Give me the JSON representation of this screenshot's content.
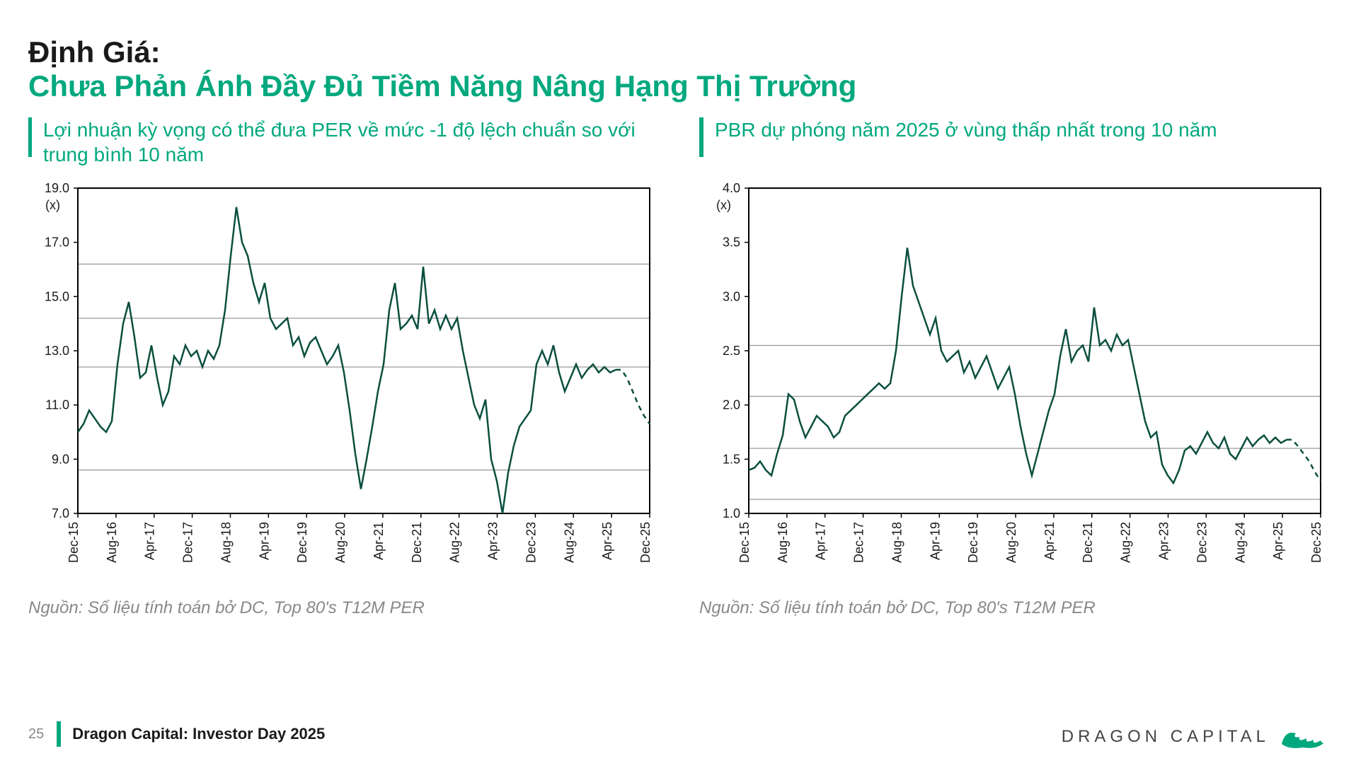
{
  "colors": {
    "accent": "#00a87e",
    "text_dark": "#1a1a1a",
    "text_muted": "#888888",
    "line": "#0b4f3f",
    "axis": "#000000",
    "grid": "#808080",
    "bg": "#ffffff"
  },
  "fonts": {
    "title_size": 42,
    "subtitle_size": 28,
    "source_size": 24,
    "footer_size": 22,
    "axis_tick_size": 18
  },
  "title": {
    "line1": "Định Giá:",
    "line2": "Chưa Phản Ánh Đầy Đủ Tiềm Năng  Nâng Hạng Thị Trường"
  },
  "chart_left": {
    "subtitle": "Lợi nhuận kỳ vọng có thể đưa PER về mức -1 độ lệch chuẩn so với trung bình 10 năm",
    "type": "line",
    "unit_label": "(x)",
    "ylim": [
      7.0,
      19.0
    ],
    "yticks": [
      7.0,
      9.0,
      11.0,
      13.0,
      15.0,
      17.0,
      19.0
    ],
    "hlines": [
      8.6,
      12.4,
      14.2,
      16.2
    ],
    "x_labels": [
      "Dec-15",
      "Aug-16",
      "Apr-17",
      "Dec-17",
      "Aug-18",
      "Apr-19",
      "Dec-19",
      "Aug-20",
      "Apr-21",
      "Dec-21",
      "Aug-22",
      "Apr-23",
      "Dec-23",
      "Aug-24",
      "Apr-25",
      "Dec-25"
    ],
    "line_color": "#0b4f3f",
    "line_width": 2.5,
    "series": [
      10.0,
      10.3,
      10.8,
      10.5,
      10.2,
      10.0,
      10.4,
      12.5,
      14.0,
      14.8,
      13.5,
      12.0,
      12.2,
      13.2,
      12.0,
      11.0,
      11.5,
      12.8,
      12.5,
      13.2,
      12.8,
      13.0,
      12.4,
      13.0,
      12.7,
      13.2,
      14.5,
      16.5,
      18.3,
      17.0,
      16.5,
      15.5,
      14.8,
      15.5,
      14.2,
      13.8,
      14.0,
      14.2,
      13.2,
      13.5,
      12.8,
      13.3,
      13.5,
      13.0,
      12.5,
      12.8,
      13.2,
      12.2,
      10.8,
      9.2,
      7.9,
      9.0,
      10.2,
      11.5,
      12.5,
      14.5,
      15.5,
      13.8,
      14.0,
      14.3,
      13.8,
      16.1,
      14.0,
      14.5,
      13.8,
      14.3,
      13.8,
      14.2,
      13.0,
      12.0,
      11.0,
      10.5,
      11.2,
      9.0,
      8.2,
      7.0,
      8.5,
      9.5,
      10.2,
      10.5,
      10.8,
      12.5,
      13.0,
      12.5,
      13.2,
      12.2,
      11.5,
      12.0,
      12.5,
      12.0,
      12.3,
      12.5,
      12.2,
      12.4,
      12.2,
      12.3
    ],
    "dashed_tail": [
      12.3,
      12.0,
      11.5,
      11.0,
      10.6,
      10.3
    ],
    "source": "Nguồn: Số liệu tính toán bở DC, Top 80's T12M PER"
  },
  "chart_right": {
    "subtitle": "PBR dự phóng năm 2025 ở vùng thấp nhất trong 10 năm",
    "type": "line",
    "unit_label": "(x)",
    "ylim": [
      1.0,
      4.0
    ],
    "yticks": [
      1.0,
      1.5,
      2.0,
      2.5,
      3.0,
      3.5,
      4.0
    ],
    "hlines": [
      1.13,
      1.6,
      2.08,
      2.55
    ],
    "x_labels": [
      "Dec-15",
      "Aug-16",
      "Apr-17",
      "Dec-17",
      "Aug-18",
      "Apr-19",
      "Dec-19",
      "Aug-20",
      "Apr-21",
      "Dec-21",
      "Aug-22",
      "Apr-23",
      "Dec-23",
      "Aug-24",
      "Apr-25",
      "Dec-25"
    ],
    "line_color": "#0b4f3f",
    "line_width": 2.5,
    "series": [
      1.4,
      1.42,
      1.48,
      1.4,
      1.35,
      1.55,
      1.72,
      2.1,
      2.05,
      1.85,
      1.7,
      1.8,
      1.9,
      1.85,
      1.8,
      1.7,
      1.75,
      1.9,
      1.95,
      2.0,
      2.05,
      2.1,
      2.15,
      2.2,
      2.15,
      2.2,
      2.5,
      3.0,
      3.45,
      3.1,
      2.95,
      2.8,
      2.65,
      2.8,
      2.5,
      2.4,
      2.45,
      2.5,
      2.3,
      2.4,
      2.25,
      2.35,
      2.45,
      2.3,
      2.15,
      2.25,
      2.35,
      2.1,
      1.8,
      1.55,
      1.35,
      1.55,
      1.75,
      1.95,
      2.1,
      2.45,
      2.7,
      2.4,
      2.5,
      2.55,
      2.4,
      2.9,
      2.55,
      2.6,
      2.5,
      2.65,
      2.55,
      2.6,
      2.35,
      2.1,
      1.85,
      1.7,
      1.75,
      1.45,
      1.35,
      1.28,
      1.4,
      1.58,
      1.62,
      1.55,
      1.65,
      1.75,
      1.65,
      1.6,
      1.7,
      1.55,
      1.5,
      1.6,
      1.7,
      1.62,
      1.68,
      1.72,
      1.65,
      1.7,
      1.65,
      1.68
    ],
    "dashed_tail": [
      1.68,
      1.62,
      1.55,
      1.48,
      1.38,
      1.3
    ],
    "source": "Nguồn: Số liệu tính toán bở DC, Top 80's T12M PER"
  },
  "footer": {
    "page": "25",
    "text": "Dragon Capital: Investor Day 2025",
    "brand": "DRAGON CAPITAL"
  }
}
